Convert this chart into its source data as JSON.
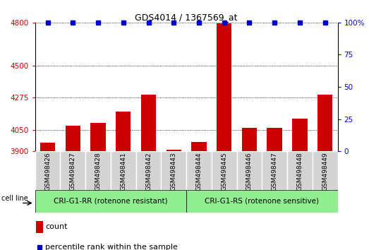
{
  "title": "GDS4014 / 1367569_at",
  "categories": [
    "GSM498426",
    "GSM498427",
    "GSM498428",
    "GSM498441",
    "GSM498442",
    "GSM498443",
    "GSM498444",
    "GSM498445",
    "GSM498446",
    "GSM498447",
    "GSM498448",
    "GSM498449"
  ],
  "counts": [
    3960,
    4080,
    4100,
    4175,
    4295,
    3910,
    3965,
    4795,
    4065,
    4065,
    4130,
    4295
  ],
  "percentile_ranks": [
    100,
    100,
    100,
    100,
    100,
    100,
    100,
    100,
    100,
    100,
    100,
    100
  ],
  "bar_color": "#cc0000",
  "dot_color": "#0000cc",
  "ylim_left": [
    3900,
    4800
  ],
  "yticks_left": [
    3900,
    4050,
    4275,
    4500,
    4800
  ],
  "ylim_right": [
    0,
    100
  ],
  "yticks_right": [
    0,
    25,
    50,
    75,
    100
  ],
  "group1_label": "CRI-G1-RR (rotenone resistant)",
  "group2_label": "CRI-G1-RS (rotenone sensitive)",
  "cell_line_label": "cell line",
  "legend_count_label": "count",
  "legend_pct_label": "percentile rank within the sample",
  "label_area_color": "#d3d3d3",
  "group_bg_color": "#90ee90",
  "dot_size": 4,
  "bar_width": 0.6
}
